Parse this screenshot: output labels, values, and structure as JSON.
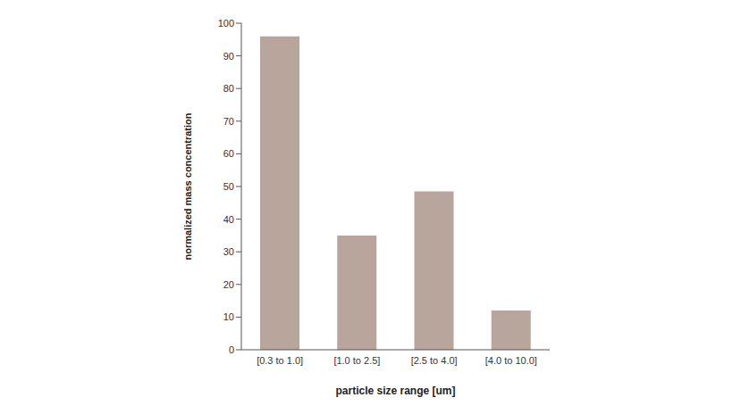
{
  "chart_data": {
    "type": "bar",
    "x_label": "particle size range [um]",
    "y_label": "normalized mass concentration",
    "categories": [
      "[0.3 to 1.0]",
      "[1.0 to 2.5]",
      "[2.5 to 4.0]",
      "[4.0 to 10.0]"
    ],
    "values": [
      96,
      35,
      48.5,
      12
    ],
    "color": "#b8a59b",
    "ylim": [
      0,
      100
    ],
    "yticks": [
      0,
      10,
      20,
      30,
      40,
      50,
      60,
      70,
      80,
      90,
      100
    ],
    "grid": false
  }
}
